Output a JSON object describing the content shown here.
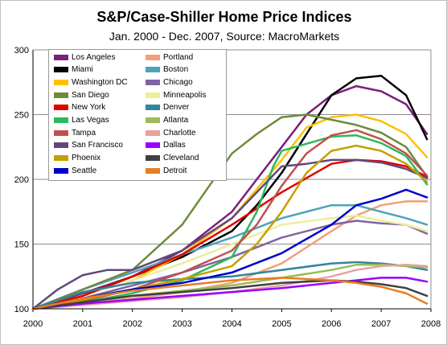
{
  "chart_data": {
    "type": "line",
    "title": "S&P/Case-Shiller Home Price Indices",
    "subtitle": "Jan. 2000 - Dec. 2007, Source: MacroMarkets",
    "xlabel": "",
    "ylabel": "",
    "xlim": [
      2000,
      2008
    ],
    "ylim": [
      100,
      300
    ],
    "x_ticks": [
      "2000",
      "2001",
      "2002",
      "2003",
      "2004",
      "2005",
      "2006",
      "2007",
      "2008"
    ],
    "y_ticks": [
      "100",
      "150",
      "200",
      "250",
      "300"
    ],
    "grid": "horizontal",
    "legend_position": "top-left",
    "series": [
      {
        "name": "Los Angeles",
        "color": "#7B1F7A",
        "points": [
          [
            2000,
            100
          ],
          [
            2001,
            112
          ],
          [
            2002,
            125
          ],
          [
            2003,
            145
          ],
          [
            2004,
            175
          ],
          [
            2004.5,
            200
          ],
          [
            2005,
            225
          ],
          [
            2005.5,
            250
          ],
          [
            2006,
            265
          ],
          [
            2006.5,
            272
          ],
          [
            2007,
            268
          ],
          [
            2007.5,
            258
          ],
          [
            2007.92,
            235
          ]
        ]
      },
      {
        "name": "Portland",
        "color": "#F2A07B",
        "points": [
          [
            2000,
            100
          ],
          [
            2001,
            104
          ],
          [
            2002,
            108
          ],
          [
            2003,
            113
          ],
          [
            2004,
            120
          ],
          [
            2005,
            135
          ],
          [
            2006,
            160
          ],
          [
            2006.5,
            172
          ],
          [
            2007,
            180
          ],
          [
            2007.5,
            183
          ],
          [
            2007.92,
            183
          ]
        ]
      },
      {
        "name": "Miami",
        "color": "#000000",
        "points": [
          [
            2000,
            100
          ],
          [
            2001,
            110
          ],
          [
            2002,
            125
          ],
          [
            2003,
            140
          ],
          [
            2004,
            160
          ],
          [
            2004.5,
            180
          ],
          [
            2005,
            205
          ],
          [
            2005.5,
            235
          ],
          [
            2006,
            265
          ],
          [
            2006.5,
            278
          ],
          [
            2007,
            280
          ],
          [
            2007.5,
            265
          ],
          [
            2007.92,
            231
          ]
        ]
      },
      {
        "name": "Boston",
        "color": "#4FA3B8",
        "points": [
          [
            2000,
            100
          ],
          [
            2001,
            115
          ],
          [
            2002,
            128
          ],
          [
            2003,
            142
          ],
          [
            2004,
            155
          ],
          [
            2005,
            170
          ],
          [
            2006,
            180
          ],
          [
            2006.5,
            180
          ],
          [
            2007,
            175
          ],
          [
            2007.5,
            170
          ],
          [
            2007.92,
            165
          ]
        ]
      },
      {
        "name": "Washington DC",
        "color": "#FFC000",
        "points": [
          [
            2000,
            100
          ],
          [
            2001,
            110
          ],
          [
            2002,
            122
          ],
          [
            2003,
            142
          ],
          [
            2004,
            170
          ],
          [
            2005,
            215
          ],
          [
            2005.5,
            240
          ],
          [
            2006,
            248
          ],
          [
            2006.5,
            250
          ],
          [
            2007,
            245
          ],
          [
            2007.5,
            235
          ],
          [
            2007.92,
            217
          ]
        ]
      },
      {
        "name": "Chicago",
        "color": "#8064A2",
        "points": [
          [
            2000,
            100
          ],
          [
            2001,
            108
          ],
          [
            2002,
            118
          ],
          [
            2003,
            128
          ],
          [
            2004,
            140
          ],
          [
            2005,
            155
          ],
          [
            2006,
            165
          ],
          [
            2006.5,
            168
          ],
          [
            2007,
            166
          ],
          [
            2007.5,
            165
          ],
          [
            2007.92,
            158
          ]
        ]
      },
      {
        "name": "San Diego",
        "color": "#6E8B3D",
        "points": [
          [
            2000,
            100
          ],
          [
            2001,
            115
          ],
          [
            2002,
            130
          ],
          [
            2003,
            165
          ],
          [
            2004,
            220
          ],
          [
            2004.5,
            235
          ],
          [
            2005,
            248
          ],
          [
            2005.5,
            250
          ],
          [
            2006,
            246
          ],
          [
            2006.5,
            242
          ],
          [
            2007,
            236
          ],
          [
            2007.5,
            225
          ],
          [
            2007.92,
            202
          ]
        ]
      },
      {
        "name": "Minneapolis",
        "color": "#EDED9A",
        "points": [
          [
            2000,
            100
          ],
          [
            2001,
            110
          ],
          [
            2002,
            122
          ],
          [
            2003,
            135
          ],
          [
            2004,
            150
          ],
          [
            2005,
            165
          ],
          [
            2006,
            170
          ],
          [
            2006.5,
            172
          ],
          [
            2007,
            168
          ],
          [
            2007.5,
            165
          ],
          [
            2007.92,
            160
          ]
        ]
      },
      {
        "name": "New York",
        "color": "#E00000",
        "points": [
          [
            2000,
            100
          ],
          [
            2001,
            110
          ],
          [
            2002,
            125
          ],
          [
            2003,
            142
          ],
          [
            2004,
            165
          ],
          [
            2005,
            190
          ],
          [
            2006,
            212
          ],
          [
            2006.5,
            215
          ],
          [
            2007,
            214
          ],
          [
            2007.5,
            210
          ],
          [
            2007.92,
            202
          ]
        ]
      },
      {
        "name": "Denver",
        "color": "#31869B",
        "points": [
          [
            2000,
            100
          ],
          [
            2001,
            113
          ],
          [
            2002,
            120
          ],
          [
            2003,
            123
          ],
          [
            2004,
            125
          ],
          [
            2005,
            130
          ],
          [
            2006,
            135
          ],
          [
            2006.5,
            136
          ],
          [
            2007,
            135
          ],
          [
            2007.5,
            133
          ],
          [
            2007.92,
            130
          ]
        ]
      },
      {
        "name": "Las Vegas",
        "color": "#2EB85C",
        "points": [
          [
            2000,
            100
          ],
          [
            2001,
            105
          ],
          [
            2002,
            112
          ],
          [
            2003,
            122
          ],
          [
            2004,
            140
          ],
          [
            2004.5,
            175
          ],
          [
            2004.83,
            210
          ],
          [
            2005,
            222
          ],
          [
            2006,
            233
          ],
          [
            2006.5,
            234
          ],
          [
            2007,
            228
          ],
          [
            2007.5,
            218
          ],
          [
            2007.92,
            196
          ]
        ]
      },
      {
        "name": "Atlanta",
        "color": "#9BBB59",
        "points": [
          [
            2000,
            100
          ],
          [
            2001,
            105
          ],
          [
            2002,
            110
          ],
          [
            2003,
            114
          ],
          [
            2004,
            118
          ],
          [
            2005,
            124
          ],
          [
            2006,
            130
          ],
          [
            2006.5,
            134
          ],
          [
            2007,
            134
          ],
          [
            2007.5,
            133
          ],
          [
            2007.92,
            132
          ]
        ]
      },
      {
        "name": "Tampa",
        "color": "#C0504D",
        "points": [
          [
            2000,
            100
          ],
          [
            2001,
            106
          ],
          [
            2002,
            115
          ],
          [
            2003,
            128
          ],
          [
            2004,
            145
          ],
          [
            2004.5,
            165
          ],
          [
            2005,
            195
          ],
          [
            2005.5,
            220
          ],
          [
            2006,
            234
          ],
          [
            2006.5,
            238
          ],
          [
            2007,
            231
          ],
          [
            2007.5,
            220
          ],
          [
            2007.92,
            203
          ]
        ]
      },
      {
        "name": "Charlotte",
        "color": "#E6A2A0",
        "points": [
          [
            2000,
            100
          ],
          [
            2001,
            103
          ],
          [
            2002,
            106
          ],
          [
            2003,
            109
          ],
          [
            2004,
            113
          ],
          [
            2005,
            118
          ],
          [
            2006,
            125
          ],
          [
            2006.5,
            130
          ],
          [
            2007,
            133
          ],
          [
            2007.5,
            134
          ],
          [
            2007.92,
            133
          ]
        ]
      },
      {
        "name": "San Francisco",
        "color": "#60497A",
        "points": [
          [
            2000,
            100
          ],
          [
            2000.5,
            115
          ],
          [
            2001,
            126
          ],
          [
            2001.5,
            130
          ],
          [
            2002,
            130
          ],
          [
            2003,
            145
          ],
          [
            2004,
            170
          ],
          [
            2004.5,
            190
          ],
          [
            2005,
            210
          ],
          [
            2005.5,
            212
          ],
          [
            2006,
            215
          ],
          [
            2006.5,
            215
          ],
          [
            2007,
            213
          ],
          [
            2007.5,
            208
          ],
          [
            2007.92,
            201
          ]
        ]
      },
      {
        "name": "Dallas",
        "color": "#9B00FF",
        "points": [
          [
            2000,
            100
          ],
          [
            2001,
            104
          ],
          [
            2002,
            107
          ],
          [
            2003,
            110
          ],
          [
            2004,
            113
          ],
          [
            2005,
            116
          ],
          [
            2006,
            120
          ],
          [
            2006.5,
            122
          ],
          [
            2007,
            124
          ],
          [
            2007.5,
            124
          ],
          [
            2007.92,
            121
          ]
        ]
      },
      {
        "name": "Phoenix",
        "color": "#C4A000",
        "points": [
          [
            2000,
            100
          ],
          [
            2001,
            107
          ],
          [
            2002,
            115
          ],
          [
            2003,
            123
          ],
          [
            2004,
            133
          ],
          [
            2004.5,
            150
          ],
          [
            2005,
            175
          ],
          [
            2005.5,
            205
          ],
          [
            2006,
            222
          ],
          [
            2006.5,
            226
          ],
          [
            2007,
            222
          ],
          [
            2007.5,
            212
          ],
          [
            2007.92,
            198
          ]
        ]
      },
      {
        "name": "Cleveland",
        "color": "#404040",
        "points": [
          [
            2000,
            100
          ],
          [
            2001,
            105
          ],
          [
            2002,
            110
          ],
          [
            2003,
            113
          ],
          [
            2004,
            116
          ],
          [
            2005,
            120
          ],
          [
            2006,
            122
          ],
          [
            2006.5,
            121
          ],
          [
            2007,
            119
          ],
          [
            2007.5,
            116
          ],
          [
            2007.92,
            110
          ]
        ]
      },
      {
        "name": "Seattle",
        "color": "#0000CC",
        "points": [
          [
            2000,
            100
          ],
          [
            2001,
            108
          ],
          [
            2002,
            115
          ],
          [
            2003,
            120
          ],
          [
            2004,
            128
          ],
          [
            2005,
            143
          ],
          [
            2006,
            165
          ],
          [
            2006.5,
            180
          ],
          [
            2007,
            185
          ],
          [
            2007.5,
            192
          ],
          [
            2007.92,
            186
          ]
        ]
      },
      {
        "name": "Detroit",
        "color": "#E67E22",
        "points": [
          [
            2000,
            100
          ],
          [
            2001,
            108
          ],
          [
            2002,
            114
          ],
          [
            2003,
            118
          ],
          [
            2004,
            122
          ],
          [
            2005,
            124
          ],
          [
            2006,
            122
          ],
          [
            2006.5,
            120
          ],
          [
            2007,
            117
          ],
          [
            2007.5,
            112
          ],
          [
            2007.92,
            104
          ]
        ]
      }
    ]
  }
}
